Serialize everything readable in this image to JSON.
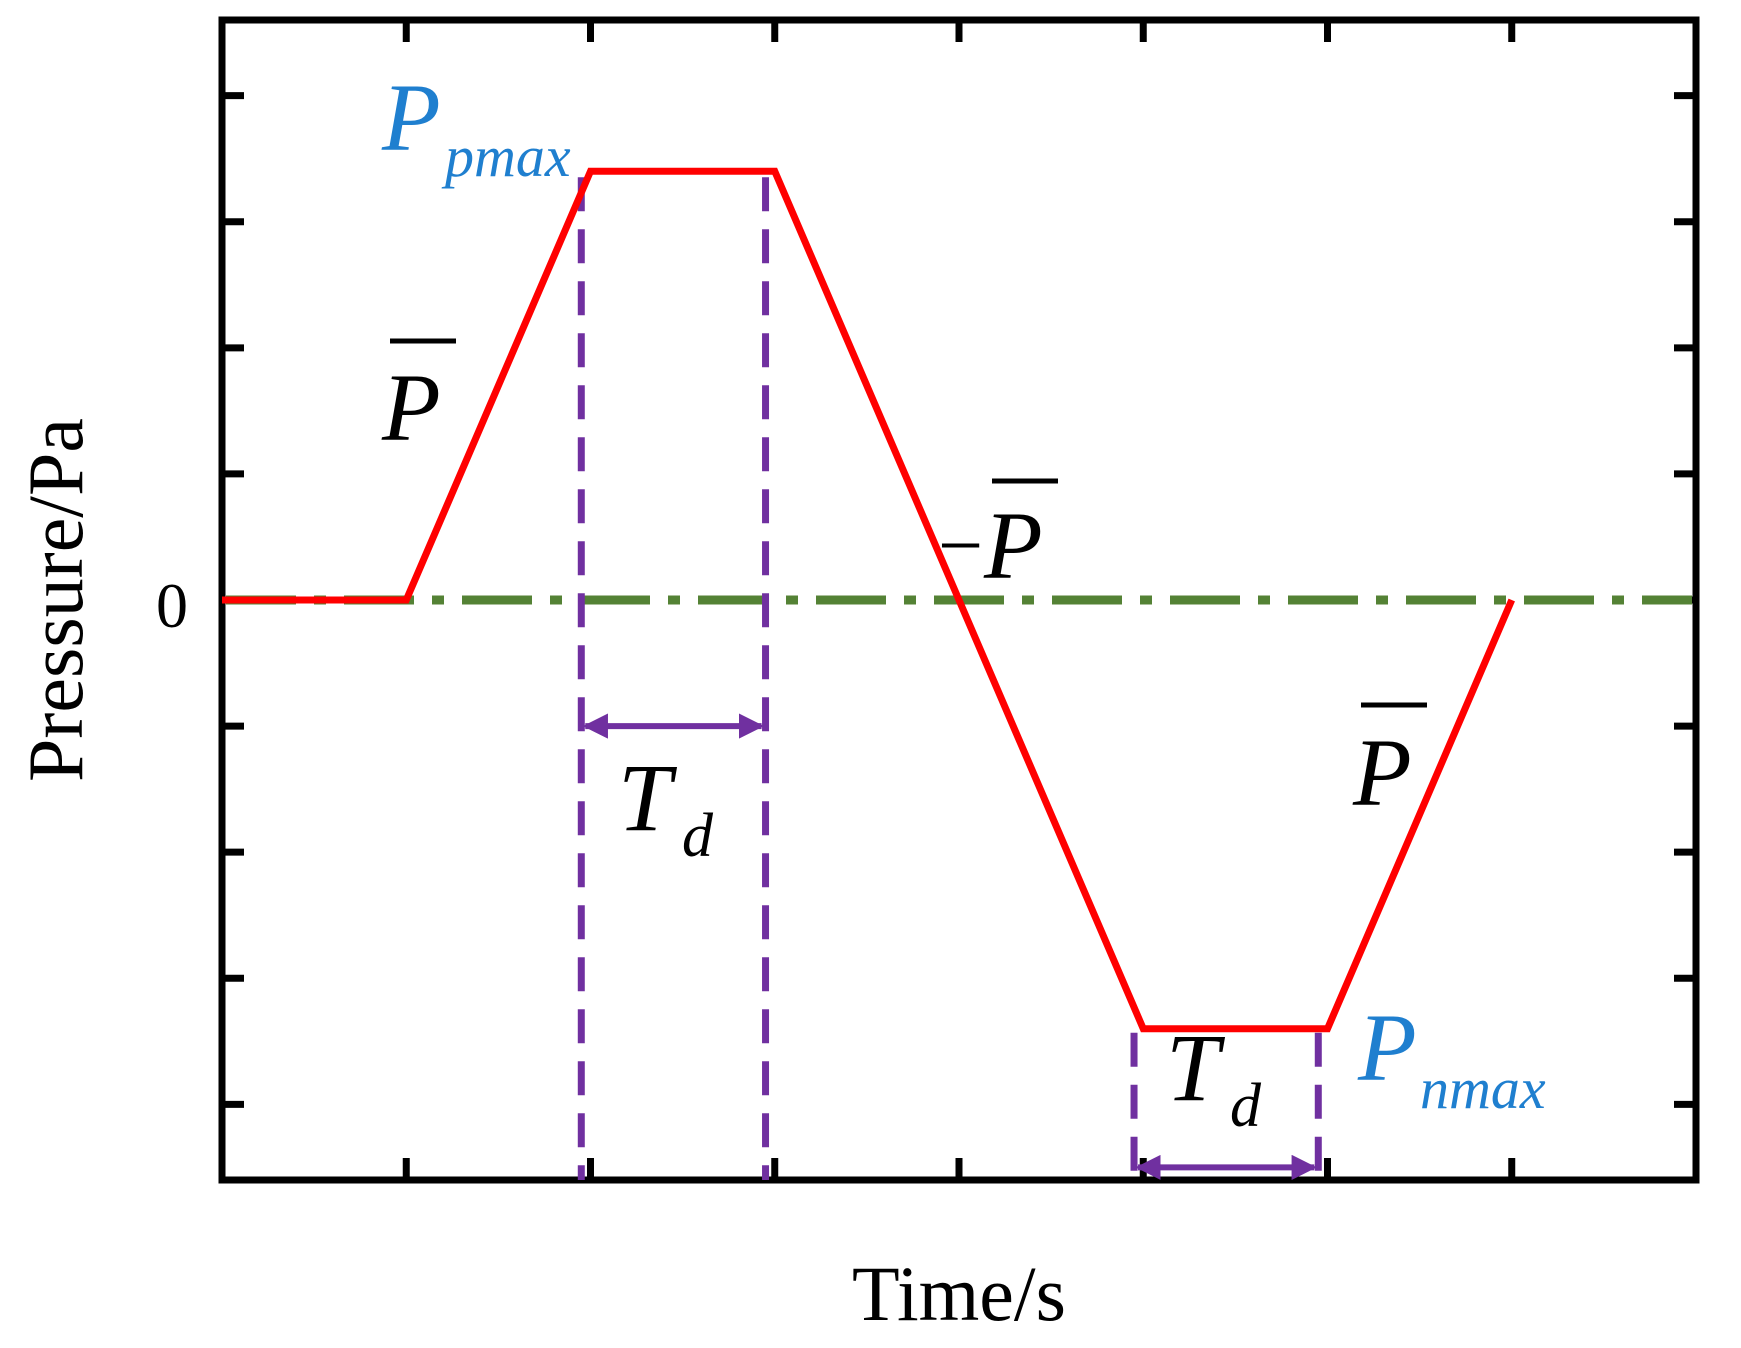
{
  "chart_data": {
    "type": "line",
    "title": "",
    "xlabel": "Time/s",
    "ylabel": "Pressure/Pa",
    "x_tick_labels": [],
    "y_tick_labels": [
      "0"
    ],
    "grid": false,
    "legend": "none",
    "xlim": [
      0,
      8
    ],
    "ylim": [
      -4.6,
      4.6
    ],
    "series": [
      {
        "color": "#ff0000",
        "x": [
          0,
          1,
          2,
          3,
          4,
          5,
          6,
          7
        ],
        "y": [
          0,
          0,
          3.4,
          3.4,
          0,
          -3.4,
          -3.4,
          0
        ]
      }
    ],
    "zero_line": {
      "y": 0,
      "style": "dash-dot",
      "color": "#548235"
    },
    "duration_markers": {
      "color": "#7030a0",
      "positive_x": [
        1.95,
        2.95
      ],
      "negative_x": [
        4.95,
        5.95
      ],
      "arrow_positive_y": -1.0,
      "arrow_negative_y": -4.5
    },
    "annotations": {
      "p_bar_rise": {
        "symbol": "P",
        "overline": true
      },
      "p_bar_fall": {
        "sign": "−",
        "symbol": "P",
        "overline": true
      },
      "p_bar_return": {
        "symbol": "P",
        "overline": true
      },
      "p_pmax": {
        "symbol": "P",
        "subscript": "pmax"
      },
      "p_nmax": {
        "symbol": "P",
        "subscript": "nmax"
      },
      "td_positive": {
        "symbol": "T",
        "subscript": "d"
      },
      "td_negative": {
        "symbol": "T",
        "subscript": "d"
      }
    }
  }
}
